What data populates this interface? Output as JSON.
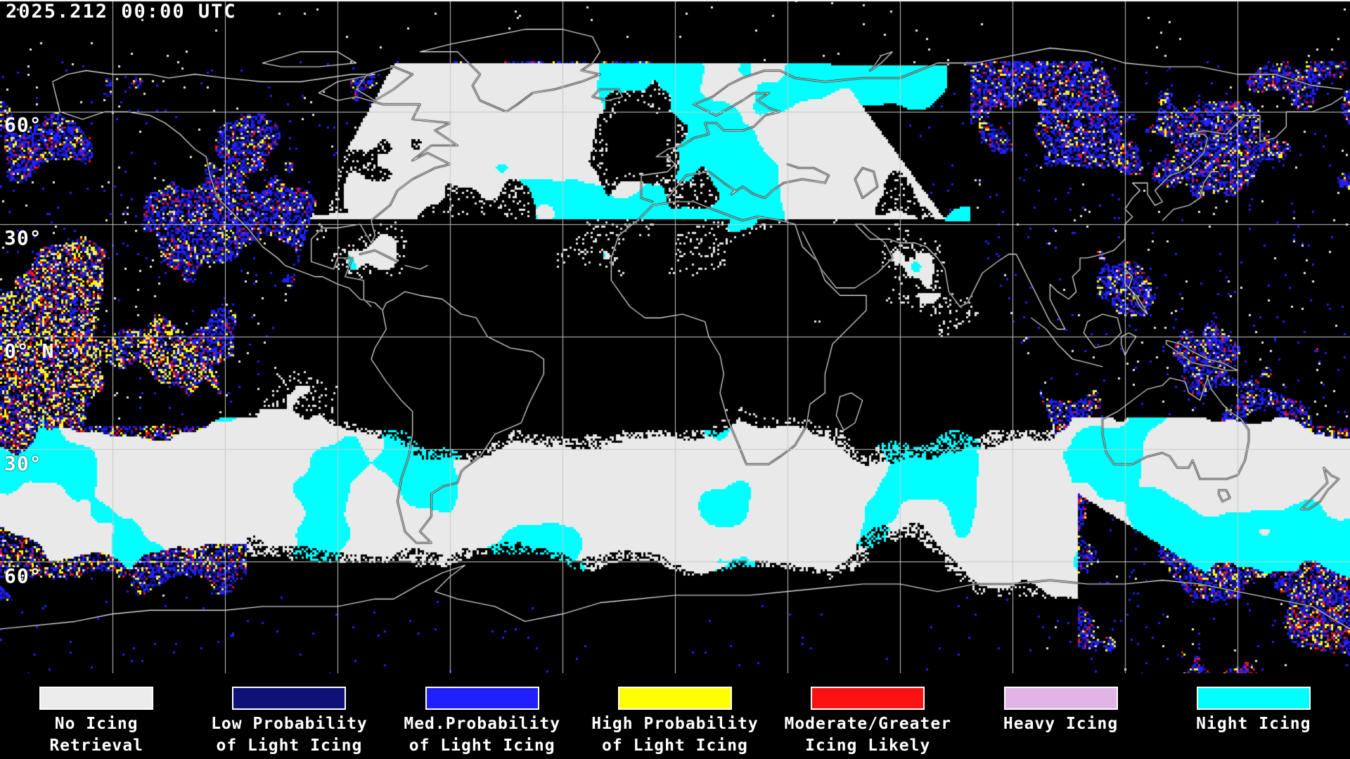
{
  "header": {
    "timestamp": "2025.212 00:00 UTC"
  },
  "map": {
    "lat_labels": [
      {
        "text": "60°"
      },
      {
        "text": "30°"
      },
      {
        "text": "0° N"
      },
      {
        "text": "30°"
      },
      {
        "text": "60°"
      }
    ]
  },
  "legend": {
    "items": [
      {
        "color": "#ececec",
        "line1": "No Icing",
        "line2": "Retrieval"
      },
      {
        "color": "#10107a",
        "line1": "Low Probability",
        "line2": "of Light Icing"
      },
      {
        "color": "#1f1fff",
        "line1": "Med.Probability",
        "line2": "of Light Icing"
      },
      {
        "color": "#ffff00",
        "line1": "High Probability",
        "line2": "of Light Icing"
      },
      {
        "color": "#fa1111",
        "line1": "Moderate/Greater",
        "line2": "Icing Likely"
      },
      {
        "color": "#e2b3e6",
        "line1": "Heavy Icing",
        "line2": ""
      },
      {
        "color": "#00ffff",
        "line1": "Night Icing",
        "line2": ""
      }
    ]
  }
}
